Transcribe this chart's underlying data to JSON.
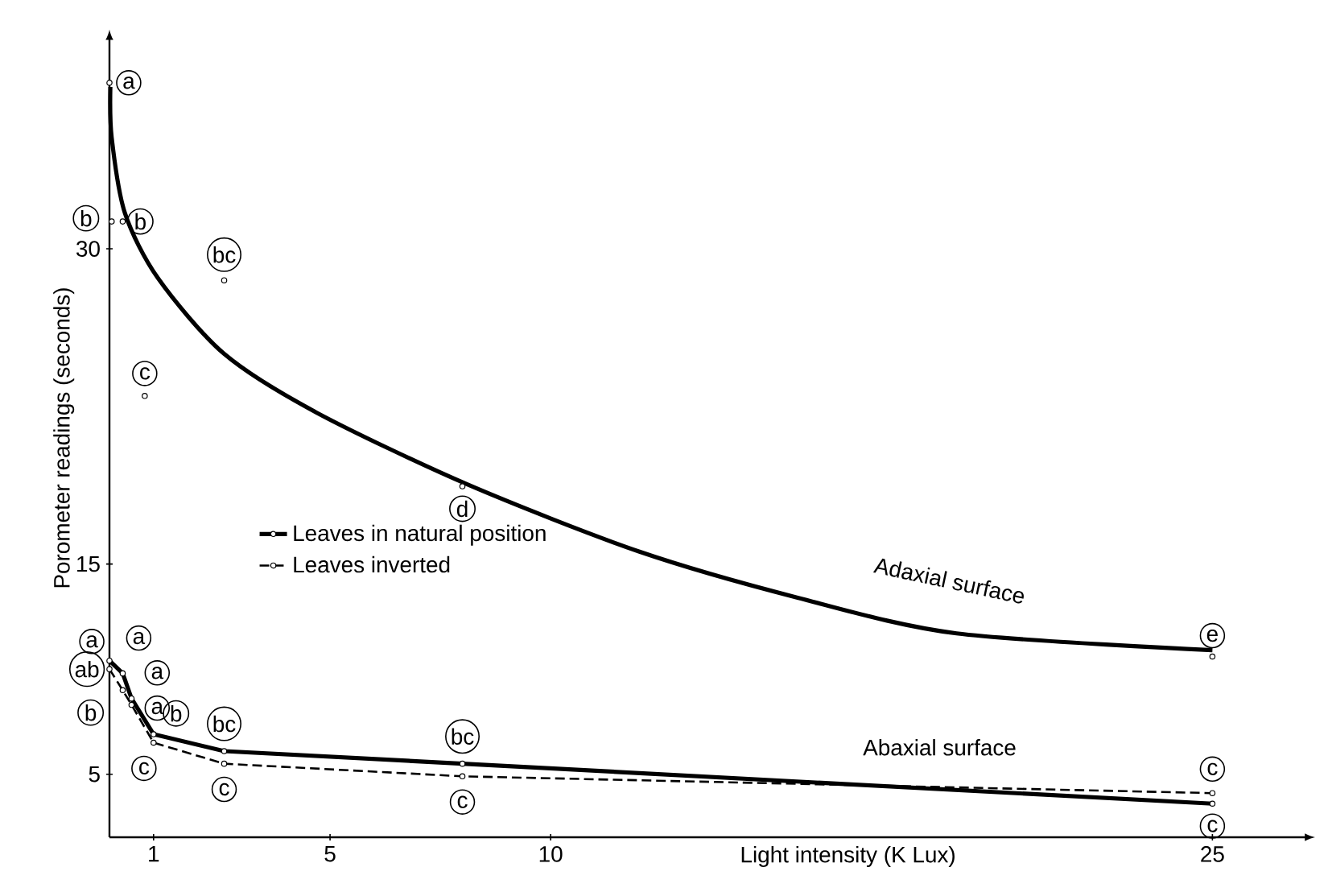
{
  "chart_data": {
    "type": "line",
    "xlabel": "Light intensity (K Lux)",
    "ylabel": "Porometer readings (seconds)",
    "xlim": [
      0,
      27
    ],
    "ylim": [
      2,
      40
    ],
    "xticks": [
      1,
      5,
      10,
      25
    ],
    "yticks": [
      5,
      15,
      30
    ],
    "grid": false,
    "legend": "left",
    "series": [
      {
        "color": "#000000",
        "line_style": "solid",
        "marker": "none",
        "x": [
          0.02,
          0.05,
          0.35,
          1.1,
          2.6,
          4.7,
          8.1,
          12,
          15.6,
          19.2,
          25
        ],
        "values": [
          37.7,
          35.3,
          31.7,
          28.6,
          25.0,
          22.2,
          18.8,
          15.6,
          13.4,
          11.7,
          10.9
        ]
      },
      {
        "type": "scatter",
        "color": "#000000",
        "marker": "circle",
        "x": [
          0,
          0.05,
          0.3,
          0.8,
          2.6,
          8,
          25
        ],
        "values": [
          37.9,
          31.3,
          31.3,
          23.0,
          28.5,
          18.7,
          10.6
        ]
      },
      {
        "name": "Leaves in natural position",
        "color": "#000000",
        "line_style": "solid",
        "marker": "circle",
        "x": [
          0,
          0.3,
          0.5,
          1,
          2.6,
          8,
          25
        ],
        "values": [
          10.4,
          9.8,
          8.6,
          6.9,
          6.1,
          5.5,
          3.6
        ]
      },
      {
        "name": "Leaves inverted",
        "color": "#000000",
        "line_style": "dashed",
        "marker": "circle",
        "x": [
          0,
          0.3,
          0.5,
          1,
          2.6,
          8,
          25
        ],
        "values": [
          10.0,
          9.0,
          8.3,
          6.5,
          5.5,
          4.9,
          4.1
        ]
      }
    ],
    "annotations": [
      {
        "text": "a",
        "x": 0,
        "y": 37.9
      },
      {
        "text": "b",
        "x": 0.05,
        "y": 31.3
      },
      {
        "text": "b",
        "x": 0.3,
        "y": 31.3
      },
      {
        "text": "c",
        "x": 0.8,
        "y": 23.0
      },
      {
        "text": "bc",
        "x": 2.6,
        "y": 28.5
      },
      {
        "text": "d",
        "x": 8,
        "y": 18.7
      },
      {
        "text": "e",
        "x": 25,
        "y": 10.6
      },
      {
        "text": "a",
        "x": 0,
        "y": 10.4
      },
      {
        "text": "ab",
        "x": 0,
        "y": 10.0
      },
      {
        "text": "b",
        "x": 0.3,
        "y": 9.0
      },
      {
        "text": "a",
        "x": 0.3,
        "y": 9.8
      },
      {
        "text": "a",
        "x": 0.5,
        "y": 8.6
      },
      {
        "text": "a",
        "x": 0.5,
        "y": 8.3
      },
      {
        "text": "b",
        "x": 1,
        "y": 6.9
      },
      {
        "text": "c",
        "x": 1,
        "y": 6.5
      },
      {
        "text": "bc",
        "x": 2.6,
        "y": 6.1
      },
      {
        "text": "c",
        "x": 2.6,
        "y": 5.5
      },
      {
        "text": "bc",
        "x": 8,
        "y": 5.5
      },
      {
        "text": "c",
        "x": 8,
        "y": 4.9
      },
      {
        "text": "c",
        "x": 25,
        "y": 4.1
      },
      {
        "text": "c",
        "x": 25,
        "y": 3.6
      },
      {
        "text": "Adaxial surface",
        "x": 19,
        "y": 11.9
      },
      {
        "text": "Abaxial surface",
        "x": 19,
        "y": 4.6
      }
    ]
  }
}
